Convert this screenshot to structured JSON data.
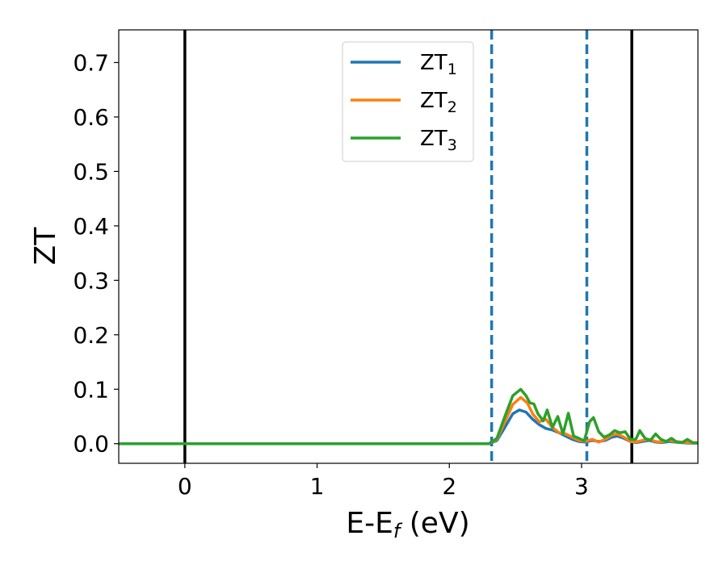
{
  "chart_data": {
    "type": "line",
    "xlabel": {
      "main": "E-E",
      "sub": "f",
      "suffix": " (eV)"
    },
    "ylabel": "ZT",
    "xlim": [
      -0.5,
      3.88
    ],
    "ylim": [
      -0.036,
      0.76
    ],
    "x_ticks": [
      0,
      1,
      2,
      3
    ],
    "y_ticks": [
      0.0,
      0.1,
      0.2,
      0.3,
      0.4,
      0.5,
      0.6,
      0.7
    ],
    "grid": false,
    "legend_position": "top-center",
    "colors": {
      "ZT1": "#1f77b4",
      "ZT2": "#ff7f0e",
      "ZT3": "#2ca02c",
      "vline_solid": "#000000",
      "vline_dashed": "#1f77b4"
    },
    "vlines_solid": [
      0.0,
      3.38
    ],
    "vlines_dashed": [
      2.32,
      3.04
    ],
    "series": [
      {
        "name": "ZT",
        "subscript": "1",
        "color_key": "ZT1",
        "x": [
          -0.5,
          2.3,
          2.36,
          2.42,
          2.48,
          2.53,
          2.58,
          2.63,
          2.68,
          2.73,
          2.78,
          2.83,
          2.88,
          2.93,
          2.98,
          3.03,
          3.08,
          3.13,
          3.18,
          3.23,
          3.27,
          3.32,
          3.37,
          3.41,
          3.46,
          3.51,
          3.56,
          3.61,
          3.66,
          3.71,
          3.76,
          3.81,
          3.88
        ],
        "y": [
          0.0,
          0.0,
          0.006,
          0.03,
          0.055,
          0.062,
          0.058,
          0.045,
          0.035,
          0.028,
          0.025,
          0.02,
          0.014,
          0.008,
          0.004,
          0.003,
          0.006,
          0.004,
          0.006,
          0.012,
          0.014,
          0.01,
          0.004,
          0.002,
          0.004,
          0.006,
          0.003,
          0.002,
          0.004,
          0.003,
          0.002,
          0.001,
          0.001
        ]
      },
      {
        "name": "ZT",
        "subscript": "2",
        "color_key": "ZT2",
        "x": [
          -0.5,
          2.3,
          2.36,
          2.42,
          2.48,
          2.54,
          2.59,
          2.63,
          2.68,
          2.73,
          2.78,
          2.83,
          2.88,
          2.93,
          2.98,
          3.03,
          3.08,
          3.13,
          3.18,
          3.23,
          3.27,
          3.32,
          3.37,
          3.41,
          3.46,
          3.51,
          3.56,
          3.61,
          3.66,
          3.71,
          3.76,
          3.81,
          3.88
        ],
        "y": [
          0.0,
          0.0,
          0.008,
          0.04,
          0.072,
          0.085,
          0.075,
          0.055,
          0.04,
          0.045,
          0.03,
          0.02,
          0.018,
          0.012,
          0.006,
          0.004,
          0.008,
          0.003,
          0.008,
          0.016,
          0.018,
          0.012,
          0.004,
          0.003,
          0.006,
          0.008,
          0.004,
          0.003,
          0.006,
          0.004,
          0.003,
          0.002,
          0.002
        ]
      },
      {
        "name": "ZT",
        "subscript": "3",
        "color_key": "ZT3",
        "x": [
          -0.5,
          2.3,
          2.36,
          2.42,
          2.48,
          2.54,
          2.58,
          2.61,
          2.64,
          2.67,
          2.71,
          2.74,
          2.78,
          2.82,
          2.86,
          2.9,
          2.94,
          2.98,
          3.02,
          3.06,
          3.09,
          3.13,
          3.17,
          3.21,
          3.25,
          3.29,
          3.33,
          3.37,
          3.41,
          3.44,
          3.48,
          3.52,
          3.56,
          3.6,
          3.64,
          3.68,
          3.72,
          3.76,
          3.8,
          3.84,
          3.88
        ],
        "y": [
          0.0,
          0.0,
          0.01,
          0.05,
          0.088,
          0.1,
          0.088,
          0.075,
          0.073,
          0.055,
          0.042,
          0.062,
          0.03,
          0.05,
          0.018,
          0.056,
          0.014,
          0.01,
          0.005,
          0.04,
          0.048,
          0.022,
          0.012,
          0.016,
          0.024,
          0.02,
          0.022,
          0.008,
          0.008,
          0.024,
          0.01,
          0.006,
          0.018,
          0.008,
          0.004,
          0.01,
          0.003,
          0.002,
          0.008,
          0.002,
          0.001
        ]
      }
    ]
  }
}
